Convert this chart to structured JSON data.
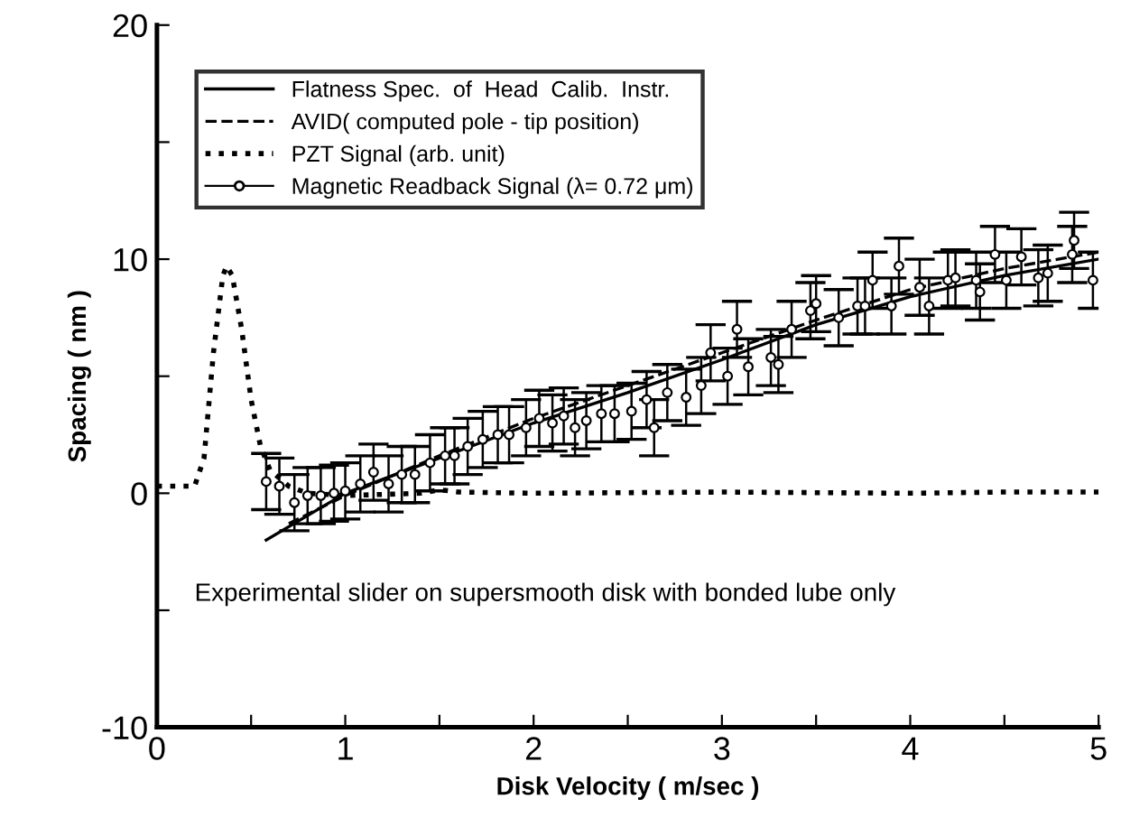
{
  "chart_data": {
    "type": "line",
    "xlabel": "Disk Velocity ( m/sec )",
    "ylabel": "Spacing ( nm )",
    "xlim": [
      0,
      5
    ],
    "ylim": [
      -10,
      20
    ],
    "xticks": [
      0,
      {
        "value": 0.5,
        "label": null
      },
      1,
      {
        "value": 1.5,
        "label": null
      },
      2,
      {
        "value": 2.5,
        "label": null
      },
      3,
      {
        "value": 3.5,
        "label": null
      },
      4,
      {
        "value": 4.5,
        "label": null
      },
      5
    ],
    "yticks": [
      -10,
      {
        "value": -5,
        "label": null
      },
      0,
      {
        "value": 5,
        "label": null
      },
      10,
      {
        "value": 15,
        "label": null
      },
      20
    ],
    "grid": false,
    "legend": "top left",
    "annotations": [
      "Experimental slider on supersmooth disk with bonded lube only"
    ],
    "series": [
      {
        "name": "Flatness Spec.  of  Head  Calib.  Instr.",
        "color": "#000000",
        "line_style": "solid",
        "x": [
          0.58,
          1.0,
          1.5,
          2.0,
          2.5,
          3.0,
          3.5,
          4.0,
          4.5,
          5.0
        ],
        "values": [
          -2.0,
          0.0,
          1.5,
          3.0,
          4.3,
          5.7,
          7.2,
          8.4,
          9.3,
          10.0
        ]
      },
      {
        "name": "AVID( computed pole - tip position)",
        "color": "#000000",
        "line_style": "dashed",
        "x": [
          0.7,
          1.0,
          1.5,
          2.0,
          2.5,
          3.0,
          3.5,
          4.0,
          4.5,
          5.0
        ],
        "values": [
          -1.3,
          -0.1,
          1.6,
          3.2,
          4.6,
          6.0,
          7.4,
          8.7,
          9.6,
          10.3
        ]
      },
      {
        "name": "PZT Signal (arb. unit)",
        "color": "#000000",
        "line_style": "dotted",
        "x": [
          0,
          0.2,
          0.25,
          0.3,
          0.35,
          0.37,
          0.4,
          0.45,
          0.5,
          0.55,
          0.6,
          0.7,
          0.8,
          1.0,
          1.4,
          1.5,
          1.6,
          2.0,
          3.0,
          4.0,
          4.5,
          5.0
        ],
        "values": [
          0.3,
          0.3,
          1.5,
          6.0,
          9.3,
          9.7,
          9.3,
          7.0,
          4.0,
          2.0,
          1.0,
          0.3,
          0.0,
          -0.1,
          0.0,
          0.15,
          0.05,
          0.0,
          0.05,
          0.0,
          0.05,
          0.05
        ]
      },
      {
        "name": "Magnetic Readback Signal (λ= 0.72 μm)",
        "color": "#000000",
        "type": "scatter",
        "marker": "circle",
        "x": [
          0.58,
          0.65,
          0.73,
          0.8,
          0.87,
          0.94,
          1.0,
          1.08,
          1.15,
          1.23,
          1.3,
          1.37,
          1.45,
          1.53,
          1.58,
          1.65,
          1.73,
          1.81,
          1.87,
          1.96,
          2.03,
          2.1,
          2.16,
          2.22,
          2.28,
          2.36,
          2.43,
          2.52,
          2.6,
          2.64,
          2.71,
          2.81,
          2.89,
          2.94,
          3.03,
          3.08,
          3.14,
          3.26,
          3.3,
          3.37,
          3.47,
          3.5,
          3.62,
          3.72,
          3.76,
          3.8,
          3.9,
          3.94,
          4.05,
          4.1,
          4.2,
          4.24,
          4.35,
          4.37,
          4.45,
          4.51,
          4.59,
          4.68,
          4.73,
          4.86,
          4.87,
          4.97
        ],
        "values": [
          0.5,
          0.3,
          -0.4,
          -0.1,
          -0.1,
          0.0,
          0.1,
          0.4,
          0.9,
          0.4,
          0.8,
          0.8,
          1.3,
          1.6,
          1.6,
          2.0,
          2.3,
          2.5,
          2.5,
          2.8,
          3.2,
          3.0,
          3.3,
          2.8,
          3.1,
          3.4,
          3.4,
          3.5,
          4.0,
          2.8,
          4.3,
          4.1,
          4.6,
          6.0,
          5.0,
          7.0,
          5.4,
          5.8,
          5.5,
          7.0,
          7.8,
          8.1,
          7.5,
          8.0,
          8.0,
          9.1,
          8.0,
          9.7,
          8.8,
          8.0,
          9.1,
          9.2,
          9.1,
          8.6,
          10.2,
          9.1,
          10.1,
          9.2,
          9.4,
          10.2,
          10.8,
          9.1
        ],
        "errors": [
          1.2,
          1.2,
          1.2,
          1.2,
          1.2,
          1.2,
          1.2,
          1.2,
          1.2,
          1.2,
          1.2,
          1.2,
          1.2,
          1.2,
          1.2,
          1.2,
          1.2,
          1.2,
          1.2,
          1.2,
          1.2,
          1.2,
          1.2,
          1.2,
          1.2,
          1.2,
          1.2,
          1.2,
          1.2,
          1.2,
          1.2,
          1.2,
          1.2,
          1.2,
          1.2,
          1.2,
          1.2,
          1.2,
          1.2,
          1.2,
          1.2,
          1.2,
          1.2,
          1.2,
          1.2,
          1.2,
          1.2,
          1.2,
          1.2,
          1.2,
          1.2,
          1.2,
          1.2,
          1.2,
          1.2,
          1.2,
          1.2,
          1.2,
          1.2,
          1.2,
          1.2,
          1.2
        ]
      }
    ]
  }
}
